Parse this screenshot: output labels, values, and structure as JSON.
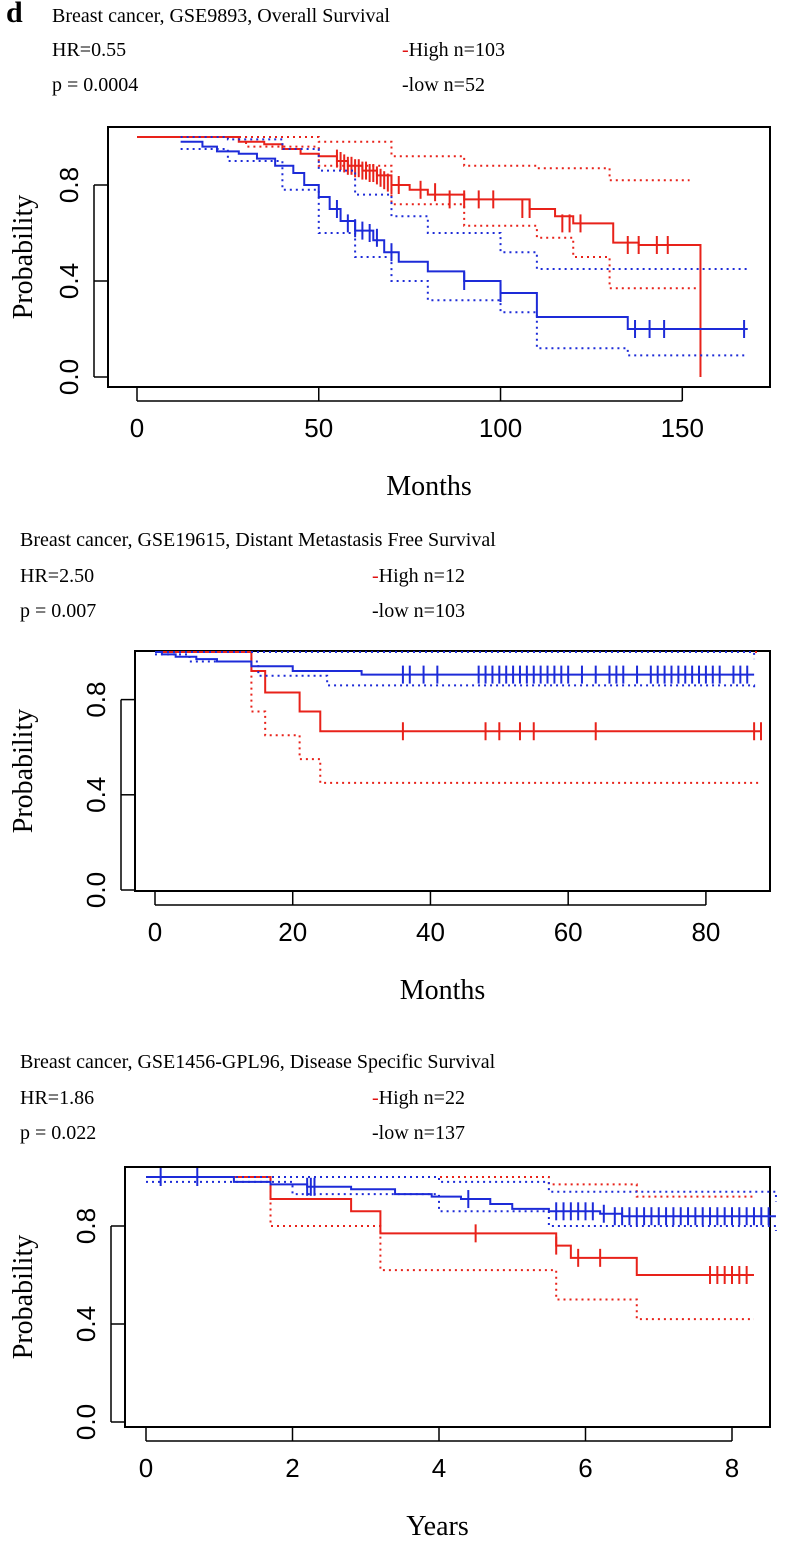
{
  "panel_label": "d",
  "colors": {
    "high": "#e8221a",
    "low": "#1d2bd8",
    "axis": "#000000"
  },
  "chart_data": [
    {
      "type": "line",
      "title": "Breast cancer, GSE9893, Overall Survival",
      "hr": "HR=0.55",
      "pvalue": "p = 0.0004",
      "legend": {
        "dash": "-",
        "high": "High n=103",
        "low": "low n=52"
      },
      "xlabel": "Months",
      "ylabel": "Probability",
      "xlim": [
        0,
        170
      ],
      "ylim": [
        0,
        1
      ],
      "xticks": [
        "0",
        "50",
        "100",
        "150"
      ],
      "yticks": [
        "0.0",
        "0.4",
        "0.8"
      ],
      "series": [
        {
          "name": "High",
          "color": "high",
          "x": [
            0,
            24,
            28,
            35,
            40,
            45,
            50,
            55,
            58,
            62,
            66,
            70,
            75,
            80,
            90,
            100,
            108,
            115,
            120,
            131,
            138,
            155,
            155
          ],
          "y": [
            1,
            1,
            0.98,
            0.97,
            0.95,
            0.93,
            0.92,
            0.9,
            0.88,
            0.86,
            0.84,
            0.8,
            0.78,
            0.76,
            0.74,
            0.74,
            0.7,
            0.67,
            0.64,
            0.56,
            0.55,
            0.55,
            0.0
          ],
          "upper_ci": {
            "x": [
              0,
              30,
              50,
              70,
              90,
              110,
              130,
              152
            ],
            "y": [
              1,
              1,
              0.98,
              0.92,
              0.88,
              0.87,
              0.82,
              0.82
            ]
          },
          "lower_ci": {
            "x": [
              0,
              30,
              50,
              70,
              90,
              110,
              120,
              130,
              155
            ],
            "y": [
              1,
              0.96,
              0.88,
              0.72,
              0.63,
              0.58,
              0.5,
              0.37,
              0.37
            ]
          },
          "censor_x": [
            55,
            56,
            57,
            58,
            59,
            60,
            61,
            62,
            63,
            64,
            65,
            66,
            67,
            68,
            69,
            70,
            72,
            78,
            82,
            86,
            90,
            94,
            98,
            106,
            108,
            117,
            119,
            122,
            135,
            138,
            143,
            146
          ],
          "censor_y": [
            0.91,
            0.9,
            0.89,
            0.88,
            0.88,
            0.87,
            0.87,
            0.86,
            0.86,
            0.85,
            0.85,
            0.84,
            0.83,
            0.82,
            0.81,
            0.8,
            0.8,
            0.78,
            0.77,
            0.74,
            0.74,
            0.74,
            0.74,
            0.7,
            0.7,
            0.64,
            0.64,
            0.64,
            0.55,
            0.55,
            0.55,
            0.55
          ]
        },
        {
          "name": "low",
          "color": "low",
          "x": [
            12,
            18,
            22,
            28,
            33,
            38,
            43,
            46,
            50,
            53,
            56,
            60,
            65,
            68,
            72,
            80,
            90,
            100,
            110,
            135,
            168
          ],
          "y": [
            0.98,
            0.96,
            0.94,
            0.93,
            0.91,
            0.88,
            0.85,
            0.8,
            0.75,
            0.7,
            0.65,
            0.61,
            0.57,
            0.52,
            0.48,
            0.44,
            0.4,
            0.35,
            0.25,
            0.2,
            0.2
          ],
          "upper_ci": {
            "x": [
              12,
              25,
              40,
              50,
              60,
              70,
              80,
              100,
              110,
              135,
              168
            ],
            "y": [
              1,
              0.99,
              0.95,
              0.86,
              0.76,
              0.67,
              0.6,
              0.52,
              0.45,
              0.45,
              0.45
            ]
          },
          "lower_ci": {
            "x": [
              12,
              25,
              40,
              50,
              60,
              70,
              80,
              100,
              110,
              135,
              168
            ],
            "y": [
              0.95,
              0.9,
              0.78,
              0.6,
              0.5,
              0.4,
              0.32,
              0.27,
              0.12,
              0.09,
              0.09
            ]
          },
          "censor_x": [
            55,
            58,
            60,
            62,
            64,
            66,
            70,
            90,
            100,
            137,
            141,
            145,
            167
          ],
          "censor_y": [
            0.7,
            0.64,
            0.62,
            0.61,
            0.6,
            0.58,
            0.52,
            0.4,
            0.35,
            0.2,
            0.2,
            0.2,
            0.2
          ]
        }
      ]
    },
    {
      "type": "line",
      "title": "Breast cancer, GSE19615, Distant Metastasis Free Survival",
      "hr": "HR=2.50",
      "pvalue": "p = 0.007",
      "legend": {
        "dash": "-",
        "high": "High n=12",
        "low": "low n=103"
      },
      "xlabel": "Months",
      "ylabel": "Probability",
      "xlim": [
        0,
        88
      ],
      "ylim": [
        0,
        1
      ],
      "xticks": [
        "0",
        "20",
        "40",
        "60",
        "80"
      ],
      "yticks": [
        "0.0",
        "0.4",
        "0.8"
      ],
      "series": [
        {
          "name": "High",
          "color": "high",
          "x": [
            0,
            14,
            16,
            21,
            24,
            88
          ],
          "y": [
            1,
            0.92,
            0.83,
            0.75,
            0.667,
            0.667
          ],
          "upper_ci": {
            "x": [
              0,
              88
            ],
            "y": [
              1,
              1
            ]
          },
          "lower_ci": {
            "x": [
              0,
              14,
              16,
              21,
              24,
              88
            ],
            "y": [
              1,
              0.75,
              0.65,
              0.55,
              0.45,
              0.45
            ]
          },
          "censor_x": [
            36,
            48,
            50,
            53,
            55,
            64,
            87,
            88
          ],
          "censor_y": [
            0.667,
            0.667,
            0.667,
            0.667,
            0.667,
            0.667,
            0.667,
            0.667
          ]
        },
        {
          "name": "low",
          "color": "low",
          "x": [
            0,
            1,
            3,
            6,
            9,
            14,
            20,
            30,
            87
          ],
          "y": [
            1,
            0.99,
            0.98,
            0.97,
            0.96,
            0.94,
            0.92,
            0.905,
            0.905
          ],
          "upper_ci": {
            "x": [
              0,
              87
            ],
            "y": [
              1,
              0.97
            ]
          },
          "lower_ci": {
            "x": [
              0,
              5,
              15,
              25,
              87
            ],
            "y": [
              0.99,
              0.96,
              0.9,
              0.86,
              0.85
            ]
          },
          "censor_x": [
            36,
            37,
            39,
            41,
            47,
            48,
            49,
            50,
            51,
            52,
            53,
            54,
            55,
            56,
            57,
            58,
            59,
            60,
            62,
            64,
            66,
            67,
            68,
            70,
            72,
            73,
            74,
            75,
            76,
            77,
            78,
            79,
            80,
            81,
            82,
            84,
            85,
            86
          ],
          "censor_y": [
            0.905,
            0.905,
            0.905,
            0.905,
            0.905,
            0.905,
            0.905,
            0.905,
            0.905,
            0.905,
            0.905,
            0.905,
            0.905,
            0.905,
            0.905,
            0.905,
            0.905,
            0.905,
            0.905,
            0.905,
            0.905,
            0.905,
            0.905,
            0.905,
            0.905,
            0.905,
            0.905,
            0.905,
            0.905,
            0.905,
            0.905,
            0.905,
            0.905,
            0.905,
            0.905,
            0.905,
            0.905,
            0.905
          ]
        }
      ]
    },
    {
      "type": "line",
      "title": "Breast cancer, GSE1456-GPL96, Disease Specific Survival",
      "hr": "HR=1.86",
      "pvalue": "p = 0.022",
      "legend": {
        "dash": "-",
        "high": "High n=22",
        "low": "low n=137"
      },
      "xlabel": "Years",
      "ylabel": "Probability",
      "xlim": [
        0,
        8.6
      ],
      "ylim": [
        0,
        1
      ],
      "xticks": [
        "0",
        "2",
        "4",
        "6",
        "8"
      ],
      "yticks": [
        "0.0",
        "0.4",
        "0.8"
      ],
      "series": [
        {
          "name": "High",
          "color": "high",
          "x": [
            0,
            1.7,
            2.8,
            3.2,
            5.5,
            5.6,
            5.8,
            6.7,
            8.3
          ],
          "y": [
            1,
            0.91,
            0.86,
            0.77,
            0.77,
            0.72,
            0.67,
            0.6,
            0.6
          ],
          "upper_ci": {
            "x": [
              0,
              1.7,
              3.2,
              5.5,
              6.7,
              8.3
            ],
            "y": [
              1,
              1,
              1,
              0.97,
              0.92,
              0.92
            ]
          },
          "lower_ci": {
            "x": [
              0,
              1.7,
              3.2,
              5.6,
              6.7,
              8.3
            ],
            "y": [
              1,
              0.8,
              0.62,
              0.5,
              0.42,
              0.42
            ]
          },
          "censor_x": [
            4.5,
            5.6,
            5.9,
            6.2,
            7.7,
            7.8,
            7.9,
            8.0,
            8.1,
            8.2
          ],
          "censor_y": [
            0.77,
            0.72,
            0.67,
            0.67,
            0.6,
            0.6,
            0.6,
            0.6,
            0.6,
            0.6
          ]
        },
        {
          "name": "low",
          "color": "low",
          "x": [
            0,
            1.2,
            1.7,
            2.2,
            2.8,
            3.4,
            3.9,
            4.3,
            4.7,
            5.0,
            5.5,
            6.2,
            6.5,
            8.6
          ],
          "y": [
            1,
            0.98,
            0.97,
            0.96,
            0.95,
            0.93,
            0.92,
            0.91,
            0.89,
            0.87,
            0.86,
            0.85,
            0.84,
            0.84
          ],
          "upper_ci": {
            "x": [
              0,
              2,
              4,
              5.5,
              8.6
            ],
            "y": [
              1,
              1,
              0.98,
              0.94,
              0.9
            ]
          },
          "lower_ci": {
            "x": [
              0,
              2,
              4,
              5.5,
              8.6
            ],
            "y": [
              0.98,
              0.93,
              0.86,
              0.8,
              0.78
            ]
          },
          "censor_x": [
            0.2,
            0.7,
            2.2,
            2.25,
            2.3,
            4.4,
            5.6,
            5.7,
            5.8,
            5.9,
            6.0,
            6.1,
            6.25,
            6.4,
            6.5,
            6.6,
            6.7,
            6.8,
            6.9,
            7.0,
            7.1,
            7.2,
            7.3,
            7.4,
            7.5,
            7.6,
            7.7,
            7.8,
            7.9,
            8.0,
            8.1,
            8.2,
            8.3,
            8.4,
            8.5
          ],
          "censor_y": [
            1,
            1,
            0.96,
            0.96,
            0.96,
            0.91,
            0.86,
            0.86,
            0.86,
            0.86,
            0.86,
            0.86,
            0.85,
            0.84,
            0.84,
            0.84,
            0.84,
            0.84,
            0.84,
            0.84,
            0.84,
            0.84,
            0.84,
            0.84,
            0.84,
            0.84,
            0.84,
            0.84,
            0.84,
            0.84,
            0.84,
            0.84,
            0.84,
            0.84,
            0.84
          ]
        }
      ]
    }
  ]
}
